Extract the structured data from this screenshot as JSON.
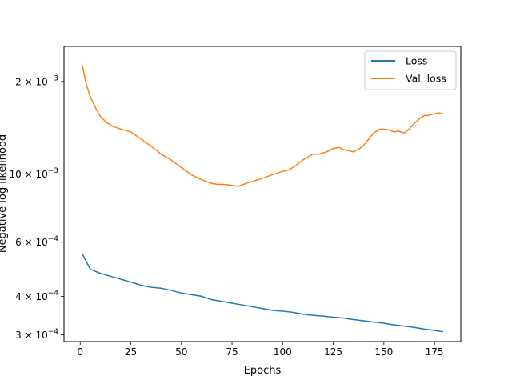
{
  "chart_data": {
    "type": "line",
    "title": "",
    "xlabel": "Epochs",
    "ylabel": "Negative log likelihood",
    "yscale": "log",
    "xlim": [
      -8,
      188
    ],
    "ylim": [
      0.000285,
      0.0026
    ],
    "x_ticks": [
      0,
      25,
      50,
      75,
      100,
      125,
      150,
      175
    ],
    "x_tick_labels": [
      "0",
      "25",
      "50",
      "75",
      "100",
      "125",
      "150",
      "175"
    ],
    "y_ticks": [
      {
        "value": 0.002,
        "mant": "2",
        "exp": "−3"
      },
      {
        "value": 0.001,
        "mant": "10",
        "exp": "−3"
      },
      {
        "value": 0.0006,
        "mant": "6",
        "exp": "−4"
      },
      {
        "value": 0.0004,
        "mant": "4",
        "exp": "−4"
      },
      {
        "value": 0.0003,
        "mant": "3",
        "exp": "−4"
      }
    ],
    "times_sign": "×",
    "grid": false,
    "legend_position": "top-right",
    "series": [
      {
        "name": "Loss",
        "color": "#1f77b4",
        "x": [
          1,
          5,
          10,
          15,
          20,
          25,
          30,
          35,
          40,
          45,
          50,
          55,
          60,
          65,
          70,
          75,
          80,
          85,
          90,
          95,
          100,
          105,
          110,
          115,
          120,
          125,
          130,
          135,
          140,
          145,
          150,
          155,
          160,
          165,
          170,
          175,
          179
        ],
        "y": [
          0.00055,
          0.00049,
          0.000475,
          0.000465,
          0.000455,
          0.000445,
          0.000435,
          0.000428,
          0.000425,
          0.000418,
          0.00041,
          0.000405,
          0.0004,
          0.00039,
          0.000385,
          0.00038,
          0.000375,
          0.00037,
          0.000365,
          0.00036,
          0.000358,
          0.000355,
          0.00035,
          0.000347,
          0.000345,
          0.000342,
          0.00034,
          0.000336,
          0.000333,
          0.00033,
          0.000327,
          0.000323,
          0.00032,
          0.000317,
          0.000313,
          0.00031,
          0.000307
        ]
      },
      {
        "name": "Val. loss",
        "color": "#ff7f0e",
        "x": [
          1,
          3,
          5,
          8,
          10,
          13,
          16,
          20,
          25,
          30,
          35,
          40,
          45,
          50,
          55,
          60,
          65,
          68,
          70,
          73,
          75,
          78,
          80,
          83,
          85,
          90,
          95,
          100,
          103,
          106,
          110,
          113,
          115,
          118,
          120,
          123,
          125,
          128,
          130,
          133,
          135,
          138,
          140,
          143,
          145,
          148,
          150,
          153,
          155,
          157,
          160,
          162,
          165,
          168,
          170,
          172,
          175,
          177,
          179
        ],
        "y": [
          0.00226,
          0.00196,
          0.00178,
          0.00162,
          0.00154,
          0.00147,
          0.00143,
          0.0014,
          0.00137,
          0.0013,
          0.00123,
          0.00116,
          0.00111,
          0.00105,
          0.000994,
          0.000957,
          0.000932,
          0.000925,
          0.000926,
          0.000922,
          0.000918,
          0.000912,
          0.000922,
          0.000937,
          0.000944,
          0.000968,
          0.000995,
          0.00102,
          0.00103,
          0.00106,
          0.00111,
          0.00114,
          0.00116,
          0.00116,
          0.00117,
          0.00119,
          0.00121,
          0.00122,
          0.0012,
          0.00119,
          0.00118,
          0.00121,
          0.00124,
          0.00131,
          0.00136,
          0.0014,
          0.0014,
          0.00139,
          0.00137,
          0.00138,
          0.00136,
          0.00139,
          0.00146,
          0.00152,
          0.00155,
          0.00155,
          0.00157,
          0.00158,
          0.00157
        ]
      }
    ]
  }
}
